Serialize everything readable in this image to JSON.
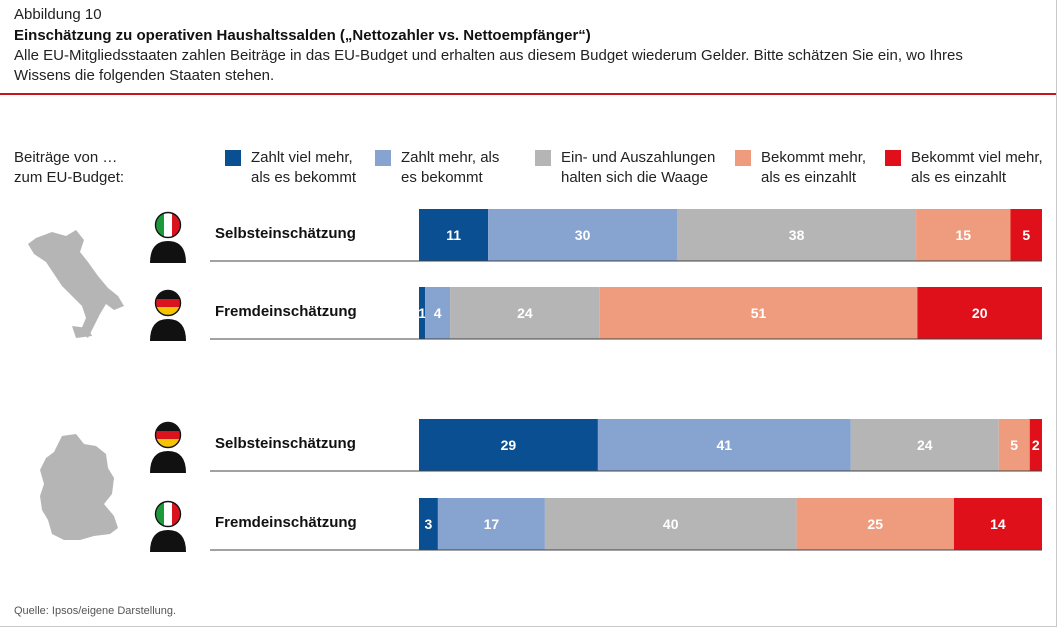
{
  "figure_label": "Abbildung 10",
  "title": "Einschätzung zu operativen Haushaltssalden („Nettozahler vs. Nettoempfänger“)",
  "subtitle": "Alle EU-Mitgliedsstaaten zahlen Beiträge in das EU-Budget und erhalten aus diesem Budget wiederum Gelder. Bitte schätzen Sie ein, wo Ihres Wissens die folgenden Staaten stehen.",
  "source": "Quelle: Ipsos/eigene Darstellung.",
  "colors": {
    "accent_rule": "#c4161c",
    "value_label_dark": "#ffffff",
    "value_label_light": "#ffffff"
  },
  "chart_data": {
    "type": "bar",
    "orientation": "horizontal",
    "stacked": true,
    "unit": "%",
    "xlim": [
      0,
      100
    ],
    "legend_title": "Beiträge von …\nzum EU-Budget:",
    "legend_placement": "top",
    "series": [
      {
        "name": "Zahlt viel mehr,\nals es bekommt",
        "color": "#0a4f92",
        "values": [
          11,
          1,
          29,
          3
        ]
      },
      {
        "name": "Zahlt mehr, als\nes bekommt",
        "color": "#86a4cf",
        "values": [
          30,
          4,
          41,
          17
        ]
      },
      {
        "name": "Ein- und Auszahlungen\nhalten sich die Waage",
        "color": "#b5b5b5",
        "values": [
          38,
          24,
          24,
          40
        ]
      },
      {
        "name": "Bekommt mehr,\nals es einzahlt",
        "color": "#ef9c7e",
        "values": [
          15,
          51,
          5,
          25
        ]
      },
      {
        "name": "Bekommt viel mehr,\nals es einzahlt",
        "color": "#e0101a",
        "values": [
          5,
          20,
          2,
          14
        ]
      }
    ],
    "groups": [
      {
        "country_icon": "italy-map-icon",
        "rows": [
          {
            "label": "Selbsteinschätzung",
            "respondent_flag": "italy-flag-icon",
            "row_index": 0
          },
          {
            "label": "Fremdeinschätzung",
            "respondent_flag": "germany-flag-icon",
            "row_index": 1
          }
        ]
      },
      {
        "country_icon": "germany-map-icon",
        "rows": [
          {
            "label": "Selbsteinschätzung",
            "respondent_flag": "germany-flag-icon",
            "row_index": 2
          },
          {
            "label": "Fremdeinschätzung",
            "respondent_flag": "italy-flag-icon",
            "row_index": 3
          }
        ]
      }
    ],
    "categories": [
      "Selbsteinschätzung",
      "Fremdeinschätzung",
      "Selbsteinschätzung",
      "Fremdeinschätzung"
    ]
  }
}
